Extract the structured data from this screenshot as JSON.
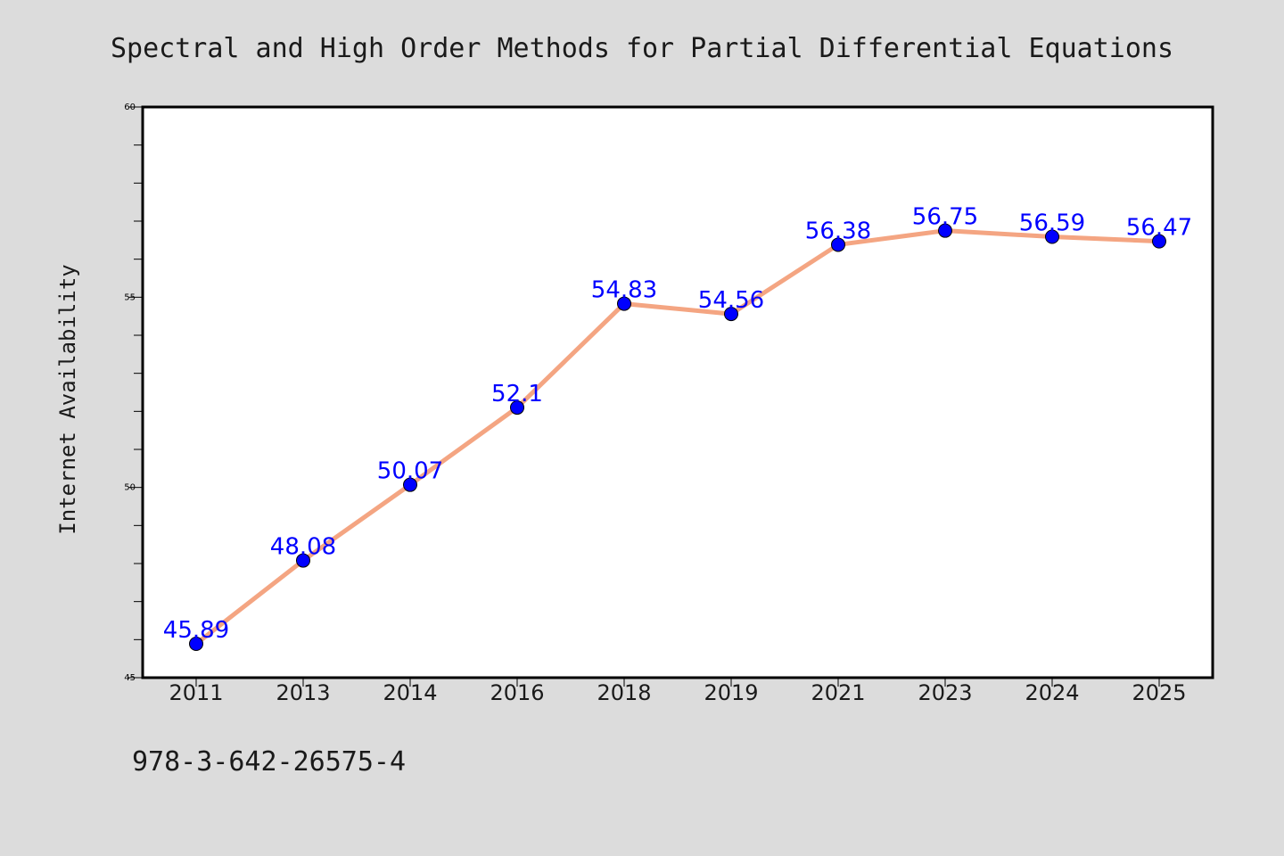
{
  "page": {
    "background_color": "#dcdcdc",
    "footer_text": "978-3-642-26575-4"
  },
  "chart_data": {
    "type": "line",
    "title": "Spectral and High Order Methods for Partial Differential Equations",
    "xlabel": "",
    "ylabel": "Internet Availability",
    "categories": [
      "2011",
      "2013",
      "2014",
      "2016",
      "2018",
      "2019",
      "2021",
      "2023",
      "2024",
      "2025"
    ],
    "series": [
      {
        "values": [
          45.89,
          48.08,
          50.07,
          52.1,
          54.83,
          54.56,
          56.38,
          56.75,
          56.59,
          56.47
        ],
        "data_labels": [
          "45.89",
          "48.08",
          "50.07",
          "52.1",
          "54.83",
          "54.56",
          "56.38",
          "56.75",
          "56.59",
          "56.47"
        ],
        "line_color": "#f4a582",
        "marker_color": "#0000ff",
        "label_color": "#0000ff"
      }
    ],
    "ylim": [
      45,
      60
    ],
    "yticks": [
      45,
      50,
      55,
      60
    ],
    "ytick_labels": [
      "45",
      "50",
      "55",
      "60"
    ],
    "y_minor_step": 1,
    "grid": false,
    "legend": "none",
    "plot_background": "#ffffff"
  }
}
